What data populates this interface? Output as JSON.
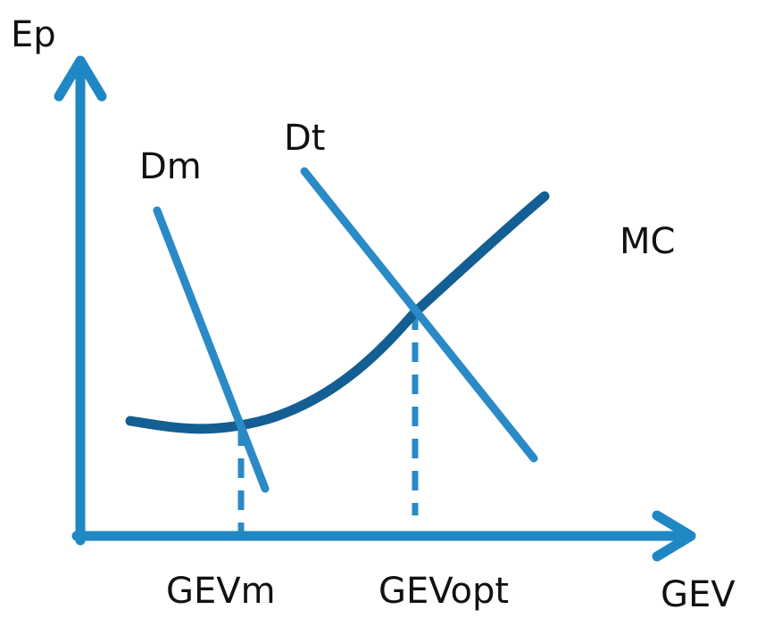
{
  "labels": {
    "y_axis": "Ep",
    "x_axis": "GEV",
    "dm": "Dm",
    "dt": "Dt",
    "mc": "MC",
    "gev_m": "GEVm",
    "gev_opt": "GEVopt"
  },
  "colors": {
    "axis": "#1f87c4",
    "demand_lines": "#2a8ac6",
    "mc_curve": "#135f94",
    "dashed_guides": "#2a8ac6",
    "text": "#111111"
  }
}
